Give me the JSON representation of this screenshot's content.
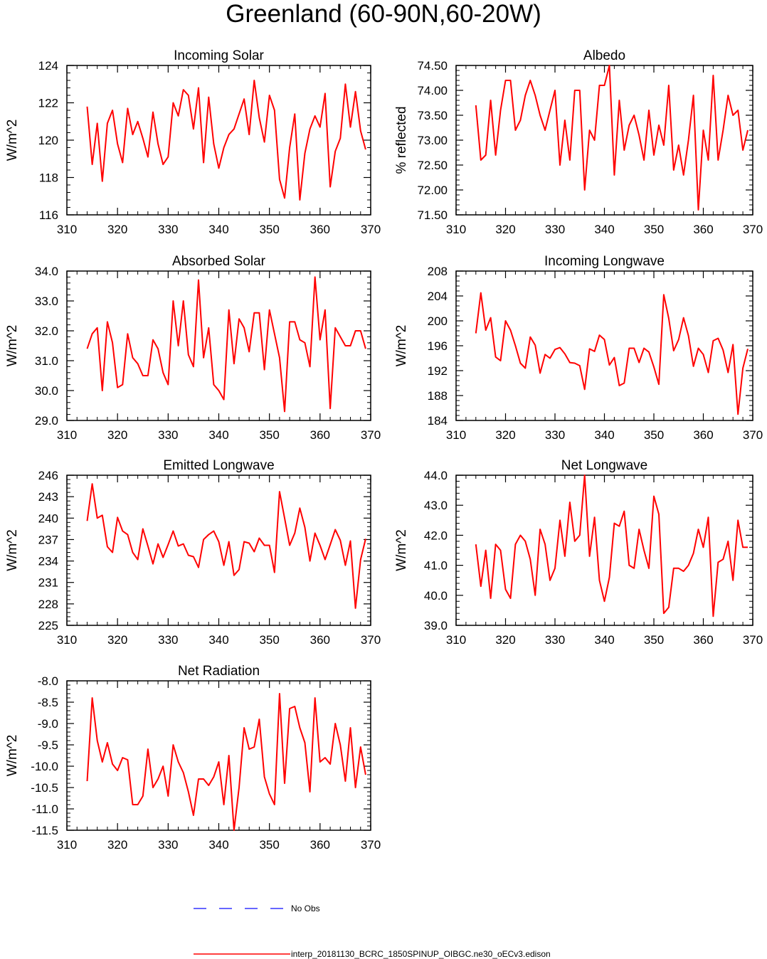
{
  "title": "Greenland (60-90N,60-20W)",
  "colors": {
    "model_line": "#ff0000",
    "obs_line": "#3333ff",
    "axis": "#000000"
  },
  "legend": {
    "obs_label": "No Obs",
    "model_label": "interp_20181130_BCRC_1850SPINUP_OIBGC.ne30_oECv3.edison"
  },
  "chart_data": [
    {
      "type": "line",
      "title": "Incoming Solar",
      "ylabel": "W/m^2",
      "xlim": [
        310,
        370
      ],
      "ylim": [
        116,
        124
      ],
      "xticks": [
        "310",
        "320",
        "330",
        "340",
        "350",
        "360",
        "370"
      ],
      "yticks": [
        "116",
        "118",
        "120",
        "122",
        "124"
      ],
      "x_start": 314,
      "series": [
        {
          "name": "model",
          "values": [
            121.8,
            118.7,
            120.9,
            117.8,
            120.9,
            121.6,
            119.8,
            118.8,
            121.7,
            120.3,
            121.0,
            120.1,
            119.1,
            121.5,
            119.8,
            118.7,
            119.1,
            122.0,
            121.3,
            122.7,
            122.4,
            120.6,
            122.8,
            118.8,
            122.3,
            119.8,
            118.5,
            119.6,
            120.3,
            120.6,
            121.4,
            122.2,
            120.3,
            123.2,
            121.2,
            119.9,
            122.4,
            121.6,
            117.9,
            116.9,
            119.6,
            121.4,
            116.8,
            119.3,
            120.6,
            121.3,
            120.7,
            122.5,
            117.5,
            119.4,
            120.1,
            123.0,
            120.7,
            122.6,
            120.5,
            119.5
          ]
        }
      ]
    },
    {
      "type": "line",
      "title": "Albedo",
      "ylabel": "% reflected",
      "xlim": [
        310,
        370
      ],
      "ylim": [
        71.5,
        74.5
      ],
      "xticks": [
        "310",
        "320",
        "330",
        "340",
        "350",
        "360",
        "370"
      ],
      "yticks": [
        "71.50",
        "72.00",
        "72.50",
        "73.00",
        "73.50",
        "74.00",
        "74.50"
      ],
      "x_start": 314,
      "series": [
        {
          "name": "model",
          "values": [
            73.7,
            72.6,
            72.7,
            73.8,
            72.7,
            73.6,
            74.2,
            74.2,
            73.2,
            73.4,
            73.9,
            74.2,
            73.9,
            73.5,
            73.2,
            73.6,
            74.0,
            72.5,
            73.4,
            72.6,
            74.0,
            74.0,
            72.0,
            73.2,
            73.0,
            74.1,
            74.1,
            74.5,
            72.3,
            73.8,
            72.8,
            73.3,
            73.5,
            73.1,
            72.6,
            73.6,
            72.7,
            73.3,
            72.9,
            74.1,
            72.4,
            72.9,
            72.3,
            73.0,
            73.9,
            71.6,
            73.2,
            72.6,
            74.3,
            72.6,
            73.2,
            73.9,
            73.5,
            73.6,
            72.8,
            73.2
          ]
        }
      ]
    },
    {
      "type": "line",
      "title": "Absorbed Solar",
      "ylabel": "W/m^2",
      "xlim": [
        310,
        370
      ],
      "ylim": [
        29.0,
        34.0
      ],
      "xticks": [
        "310",
        "320",
        "330",
        "340",
        "350",
        "360",
        "370"
      ],
      "yticks": [
        "29.0",
        "30.0",
        "31.0",
        "32.0",
        "33.0",
        "34.0"
      ],
      "x_start": 314,
      "series": [
        {
          "name": "model",
          "values": [
            31.4,
            31.9,
            32.1,
            30.0,
            32.3,
            31.6,
            30.1,
            30.2,
            31.9,
            31.1,
            30.9,
            30.5,
            30.5,
            31.7,
            31.4,
            30.6,
            30.2,
            33.0,
            31.5,
            33.0,
            31.2,
            30.8,
            33.7,
            31.1,
            32.1,
            30.2,
            30.0,
            29.7,
            32.7,
            30.9,
            32.4,
            32.1,
            31.3,
            32.6,
            32.6,
            30.7,
            32.7,
            31.9,
            31.1,
            29.3,
            32.3,
            32.3,
            31.7,
            31.6,
            30.8,
            33.8,
            31.7,
            32.7,
            29.4,
            32.1,
            31.8,
            31.5,
            31.5,
            32.0,
            32.0,
            31.4
          ]
        }
      ]
    },
    {
      "type": "line",
      "title": "Incoming Longwave",
      "ylabel": "W/m^2",
      "xlim": [
        310,
        370
      ],
      "ylim": [
        184,
        208
      ],
      "xticks": [
        "310",
        "320",
        "330",
        "340",
        "350",
        "360",
        "370"
      ],
      "yticks": [
        "184",
        "188",
        "192",
        "196",
        "200",
        "204",
        "208"
      ],
      "x_start": 314,
      "series": [
        {
          "name": "model",
          "values": [
            198.0,
            204.5,
            198.5,
            200.5,
            194.2,
            193.6,
            200.0,
            198.5,
            196.0,
            193.2,
            192.4,
            197.4,
            196.1,
            191.6,
            194.6,
            194.0,
            195.4,
            195.7,
            194.7,
            193.3,
            193.2,
            192.8,
            189.0,
            195.5,
            195.1,
            197.7,
            197.0,
            192.9,
            194.1,
            189.6,
            190.0,
            195.6,
            195.6,
            193.3,
            195.6,
            195.0,
            192.6,
            189.8,
            204.2,
            200.4,
            195.2,
            197.0,
            200.5,
            197.6,
            192.7,
            195.6,
            194.6,
            191.7,
            196.8,
            197.2,
            195.3,
            191.7,
            196.2,
            185.0,
            192.4,
            195.5
          ]
        }
      ]
    },
    {
      "type": "line",
      "title": "Emitted Longwave",
      "ylabel": "W/m^2",
      "xlim": [
        310,
        370
      ],
      "ylim": [
        225,
        246
      ],
      "xticks": [
        "310",
        "320",
        "330",
        "340",
        "350",
        "360",
        "370"
      ],
      "yticks": [
        "225",
        "228",
        "231",
        "234",
        "237",
        "240",
        "243",
        "246"
      ],
      "x_start": 314,
      "series": [
        {
          "name": "model",
          "values": [
            239.6,
            244.8,
            240.0,
            240.4,
            236.0,
            235.2,
            240.1,
            238.2,
            237.7,
            235.2,
            234.2,
            238.5,
            236.1,
            233.6,
            236.4,
            234.5,
            236.3,
            238.2,
            236.1,
            236.4,
            234.8,
            234.6,
            233.1,
            237.0,
            237.7,
            238.2,
            236.7,
            233.4,
            236.7,
            232.0,
            232.8,
            236.7,
            236.5,
            235.3,
            237.2,
            236.2,
            236.2,
            232.4,
            243.7,
            240.0,
            236.2,
            237.9,
            241.4,
            238.7,
            234.0,
            237.9,
            236.2,
            234.2,
            236.3,
            238.4,
            236.9,
            233.4,
            236.8,
            227.4,
            234.2,
            237.1
          ]
        }
      ]
    },
    {
      "type": "line",
      "title": "Net Longwave",
      "ylabel": "W/m^2",
      "xlim": [
        310,
        370
      ],
      "ylim": [
        39.0,
        44.0
      ],
      "xticks": [
        "310",
        "320",
        "330",
        "340",
        "350",
        "360",
        "370"
      ],
      "yticks": [
        "39.0",
        "40.0",
        "41.0",
        "42.0",
        "43.0",
        "44.0"
      ],
      "x_start": 314,
      "series": [
        {
          "name": "model",
          "values": [
            41.7,
            40.3,
            41.5,
            39.9,
            41.7,
            41.5,
            40.2,
            39.9,
            41.7,
            42.0,
            41.8,
            41.2,
            40.0,
            42.2,
            41.7,
            40.5,
            40.9,
            42.5,
            41.3,
            43.1,
            41.8,
            42.0,
            44.0,
            41.3,
            42.6,
            40.5,
            39.8,
            40.6,
            42.4,
            42.3,
            42.8,
            41.0,
            40.9,
            42.2,
            41.5,
            40.9,
            43.3,
            42.7,
            39.4,
            39.6,
            40.9,
            40.9,
            40.8,
            41.0,
            41.4,
            42.2,
            41.6,
            42.6,
            39.3,
            41.1,
            41.2,
            41.8,
            40.5,
            42.5,
            41.6,
            41.6
          ]
        }
      ]
    },
    {
      "type": "line",
      "title": "Net Radiation",
      "ylabel": "W/m^2",
      "xlim": [
        310,
        370
      ],
      "ylim": [
        -11.5,
        -8.0
      ],
      "xticks": [
        "310",
        "320",
        "330",
        "340",
        "350",
        "360",
        "370"
      ],
      "yticks": [
        "-11.5",
        "-11.0",
        "-10.5",
        "-10.0",
        "-9.5",
        "-9.0",
        "-8.5",
        "-8.0"
      ],
      "x_start": 314,
      "series": [
        {
          "name": "model",
          "values": [
            -10.35,
            -8.4,
            -9.4,
            -9.9,
            -9.45,
            -9.95,
            -10.1,
            -9.8,
            -9.85,
            -10.9,
            -10.9,
            -10.7,
            -9.6,
            -10.5,
            -10.3,
            -10.0,
            -10.7,
            -9.5,
            -9.9,
            -10.15,
            -10.6,
            -11.15,
            -10.3,
            -10.3,
            -10.45,
            -10.25,
            -9.9,
            -10.9,
            -9.75,
            -11.5,
            -10.5,
            -9.1,
            -9.6,
            -9.55,
            -8.9,
            -10.25,
            -10.65,
            -10.9,
            -8.3,
            -10.4,
            -8.65,
            -8.6,
            -9.1,
            -9.45,
            -10.6,
            -8.4,
            -9.9,
            -9.8,
            -9.95,
            -9.0,
            -9.5,
            -10.35,
            -9.1,
            -10.5,
            -9.55,
            -10.2
          ]
        }
      ]
    }
  ]
}
